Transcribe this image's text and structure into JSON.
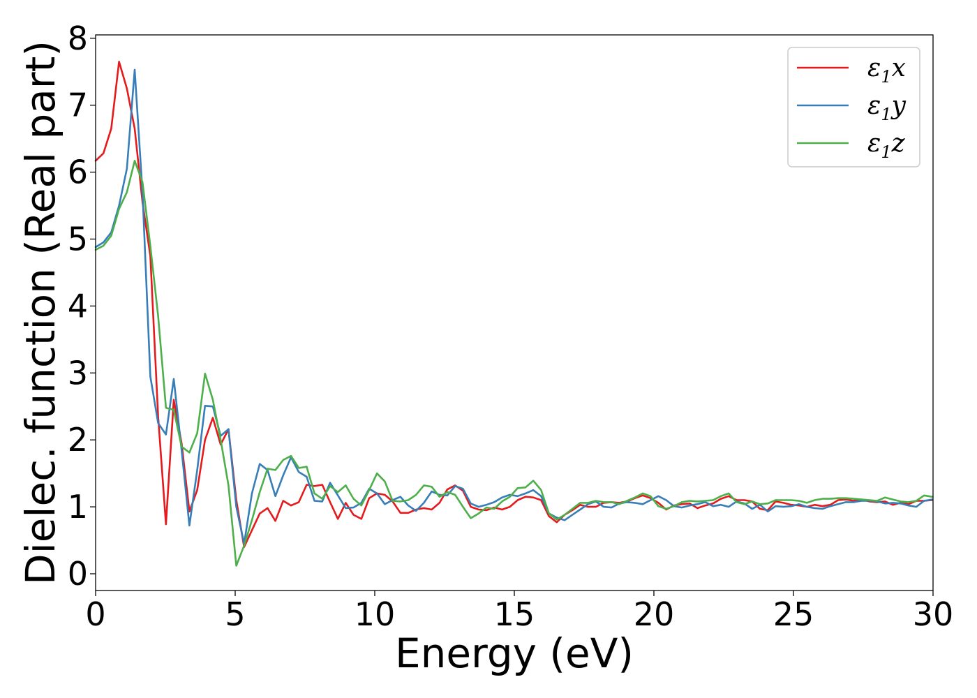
{
  "chart_data": {
    "type": "line",
    "xlabel": "Energy (eV)",
    "ylabel": "Dielec. function (Real part)",
    "xlim": [
      0,
      30
    ],
    "ylim": [
      -0.25,
      8.05
    ],
    "xticks": [
      "0",
      "5",
      "10",
      "15",
      "20",
      "25",
      "30"
    ],
    "yticks": [
      "0",
      "1",
      "2",
      "3",
      "4",
      "5",
      "6",
      "7",
      "8"
    ],
    "grid": false,
    "legend_position": "top-right",
    "series": [
      {
        "name": "ε1x",
        "legend_main": "ε",
        "legend_sub": "1",
        "legend_tail": "x",
        "color": "#e41a1c",
        "x": [
          0.0,
          0.28,
          0.56,
          0.84,
          1.12,
          1.4,
          1.68,
          1.96,
          2.24,
          2.52,
          2.8,
          3.08,
          3.36,
          3.64,
          3.92,
          4.2,
          4.48,
          4.76,
          5.04,
          5.32,
          5.6,
          5.88,
          6.16,
          6.44,
          6.72,
          7.0,
          7.28,
          7.56,
          7.84,
          8.12,
          8.4,
          8.68,
          8.96,
          9.24,
          9.52,
          9.8,
          10.08,
          10.36,
          10.64,
          10.92,
          11.2,
          11.48,
          11.76,
          12.04,
          12.32,
          12.6,
          12.88,
          13.16,
          13.44,
          13.72,
          14.0,
          14.28,
          14.56,
          14.84,
          15.12,
          15.4,
          15.68,
          15.96,
          16.24,
          16.52,
          16.8,
          17.08,
          17.36,
          17.64,
          17.92,
          18.2,
          18.48,
          18.76,
          19.04,
          19.32,
          19.6,
          19.88,
          20.16,
          20.44,
          20.72,
          21.0,
          21.28,
          21.56,
          21.84,
          22.12,
          22.4,
          22.68,
          22.96,
          23.24,
          23.52,
          23.8,
          24.08,
          24.36,
          24.64,
          24.92,
          25.2,
          25.48,
          25.76,
          26.04,
          26.32,
          26.6,
          26.88,
          27.16,
          27.44,
          27.72,
          28.0,
          28.28,
          28.56,
          28.84,
          29.12,
          29.4,
          29.68,
          29.96
        ],
        "y": [
          6.17,
          6.28,
          6.65,
          7.65,
          7.25,
          6.65,
          5.55,
          4.75,
          2.35,
          0.74,
          2.6,
          1.95,
          0.93,
          1.25,
          2.0,
          2.33,
          1.93,
          2.16,
          1.1,
          0.4,
          0.65,
          0.9,
          0.98,
          0.79,
          1.09,
          1.02,
          1.07,
          1.33,
          1.31,
          1.33,
          1.07,
          0.82,
          1.06,
          0.88,
          0.82,
          1.13,
          1.2,
          1.18,
          1.08,
          0.91,
          0.91,
          0.96,
          0.98,
          0.96,
          1.06,
          1.26,
          1.32,
          1.24,
          1.0,
          0.96,
          0.95,
          0.99,
          0.96,
          1.0,
          1.1,
          1.15,
          1.14,
          1.1,
          0.86,
          0.77,
          0.88,
          0.95,
          1.03,
          1.0,
          1.0,
          1.06,
          1.07,
          1.06,
          1.08,
          1.13,
          1.17,
          1.13,
          1.06,
          0.96,
          1.02,
          1.04,
          1.05,
          0.98,
          1.02,
          1.05,
          1.12,
          1.16,
          1.1,
          1.1,
          1.08,
          0.97,
          0.95,
          1.08,
          1.06,
          1.03,
          1.02,
          1.0,
          1.03,
          1.01,
          1.03,
          1.1,
          1.11,
          1.09,
          1.11,
          1.08,
          1.07,
          1.08,
          1.03,
          1.06,
          1.04,
          1.09,
          1.09,
          1.1
        ]
      },
      {
        "name": "ε1y",
        "legend_main": "ε",
        "legend_sub": "1",
        "legend_tail": "y",
        "color": "#377eb8",
        "x": [
          0.0,
          0.28,
          0.56,
          0.84,
          1.12,
          1.4,
          1.68,
          1.96,
          2.24,
          2.52,
          2.8,
          3.08,
          3.36,
          3.64,
          3.92,
          4.2,
          4.48,
          4.76,
          5.04,
          5.32,
          5.6,
          5.88,
          6.16,
          6.44,
          6.72,
          7.0,
          7.28,
          7.56,
          7.84,
          8.12,
          8.4,
          8.68,
          8.96,
          9.24,
          9.52,
          9.8,
          10.08,
          10.36,
          10.64,
          10.92,
          11.2,
          11.48,
          11.76,
          12.04,
          12.32,
          12.6,
          12.88,
          13.16,
          13.44,
          13.72,
          14.0,
          14.28,
          14.56,
          14.84,
          15.12,
          15.4,
          15.68,
          15.96,
          16.24,
          16.52,
          16.8,
          17.08,
          17.36,
          17.64,
          17.92,
          18.2,
          18.48,
          18.76,
          19.04,
          19.32,
          19.6,
          19.88,
          20.16,
          20.44,
          20.72,
          21.0,
          21.28,
          21.56,
          21.84,
          22.12,
          22.4,
          22.68,
          22.96,
          23.24,
          23.52,
          23.8,
          24.08,
          24.36,
          24.64,
          24.92,
          25.2,
          25.48,
          25.76,
          26.04,
          26.32,
          26.6,
          26.88,
          27.16,
          27.44,
          27.72,
          28.0,
          28.28,
          28.56,
          28.84,
          29.12,
          29.4,
          29.68,
          29.96
        ],
        "y": [
          4.88,
          4.95,
          5.1,
          5.5,
          6.05,
          7.53,
          5.7,
          2.95,
          2.25,
          2.08,
          2.91,
          1.85,
          0.72,
          1.55,
          2.51,
          2.5,
          2.06,
          2.16,
          1.0,
          0.45,
          1.2,
          1.64,
          1.55,
          1.16,
          1.47,
          1.74,
          1.52,
          1.45,
          1.09,
          1.08,
          1.36,
          1.17,
          0.98,
          0.99,
          1.06,
          1.27,
          1.2,
          1.04,
          1.1,
          1.15,
          1.02,
          0.94,
          1.06,
          1.23,
          1.18,
          1.17,
          1.31,
          1.27,
          1.05,
          1.0,
          1.03,
          1.07,
          1.14,
          1.18,
          1.16,
          1.2,
          1.25,
          1.16,
          0.9,
          0.84,
          0.8,
          0.88,
          0.96,
          1.04,
          1.08,
          1.0,
          0.99,
          1.05,
          1.07,
          1.06,
          1.04,
          1.1,
          1.16,
          1.1,
          1.01,
          0.99,
          1.02,
          1.04,
          1.07,
          1.01,
          1.03,
          1.0,
          1.08,
          1.05,
          0.97,
          1.03,
          0.93,
          1.01,
          1.0,
          1.01,
          1.04,
          1.0,
          0.98,
          0.97,
          1.01,
          1.04,
          1.07,
          1.07,
          1.09,
          1.09,
          1.08,
          1.05,
          1.06,
          1.05,
          1.02,
          1.0,
          1.09,
          1.11
        ]
      },
      {
        "name": "ε1z",
        "legend_main": "ε",
        "legend_sub": "1",
        "legend_tail": "z",
        "color": "#4daf4a",
        "x": [
          0.0,
          0.28,
          0.56,
          0.84,
          1.12,
          1.4,
          1.68,
          1.96,
          2.24,
          2.52,
          2.8,
          3.08,
          3.36,
          3.64,
          3.92,
          4.2,
          4.48,
          4.76,
          5.04,
          5.32,
          5.6,
          5.88,
          6.16,
          6.44,
          6.72,
          7.0,
          7.28,
          7.56,
          7.84,
          8.12,
          8.4,
          8.68,
          8.96,
          9.24,
          9.52,
          9.8,
          10.08,
          10.36,
          10.64,
          10.92,
          11.2,
          11.48,
          11.76,
          12.04,
          12.32,
          12.6,
          12.88,
          13.16,
          13.44,
          13.72,
          14.0,
          14.28,
          14.56,
          14.84,
          15.12,
          15.4,
          15.68,
          15.96,
          16.24,
          16.52,
          16.8,
          17.08,
          17.36,
          17.64,
          17.92,
          18.2,
          18.48,
          18.76,
          19.04,
          19.32,
          19.6,
          19.88,
          20.16,
          20.44,
          20.72,
          21.0,
          21.28,
          21.56,
          21.84,
          22.12,
          22.4,
          22.68,
          22.96,
          23.24,
          23.52,
          23.8,
          24.08,
          24.36,
          24.64,
          24.92,
          25.2,
          25.48,
          25.76,
          26.04,
          26.32,
          26.6,
          26.88,
          27.16,
          27.44,
          27.72,
          28.0,
          28.28,
          28.56,
          28.84,
          29.12,
          29.4,
          29.68,
          29.96
        ],
        "y": [
          4.84,
          4.9,
          5.05,
          5.45,
          5.7,
          6.17,
          5.85,
          4.9,
          3.85,
          2.48,
          2.45,
          1.9,
          1.81,
          2.1,
          2.99,
          2.6,
          2.0,
          1.32,
          0.12,
          0.42,
          0.8,
          1.22,
          1.57,
          1.55,
          1.7,
          1.76,
          1.58,
          1.6,
          1.2,
          1.12,
          1.31,
          1.22,
          1.32,
          1.12,
          1.02,
          1.25,
          1.5,
          1.38,
          1.09,
          1.08,
          1.1,
          1.18,
          1.32,
          1.3,
          1.15,
          1.22,
          1.18,
          1.0,
          0.83,
          0.9,
          0.99,
          0.97,
          1.08,
          1.15,
          1.28,
          1.29,
          1.39,
          1.25,
          0.9,
          0.81,
          0.88,
          0.97,
          1.06,
          1.06,
          1.09,
          1.07,
          1.07,
          1.04,
          1.09,
          1.14,
          1.2,
          1.16,
          1.01,
          0.97,
          1.01,
          1.07,
          1.09,
          1.08,
          1.09,
          1.1,
          1.16,
          1.2,
          1.07,
          1.04,
          1.08,
          1.04,
          1.05,
          1.1,
          1.1,
          1.1,
          1.09,
          1.06,
          1.1,
          1.12,
          1.12,
          1.13,
          1.13,
          1.12,
          1.11,
          1.1,
          1.09,
          1.14,
          1.11,
          1.08,
          1.07,
          1.09,
          1.17,
          1.15
        ]
      }
    ]
  }
}
